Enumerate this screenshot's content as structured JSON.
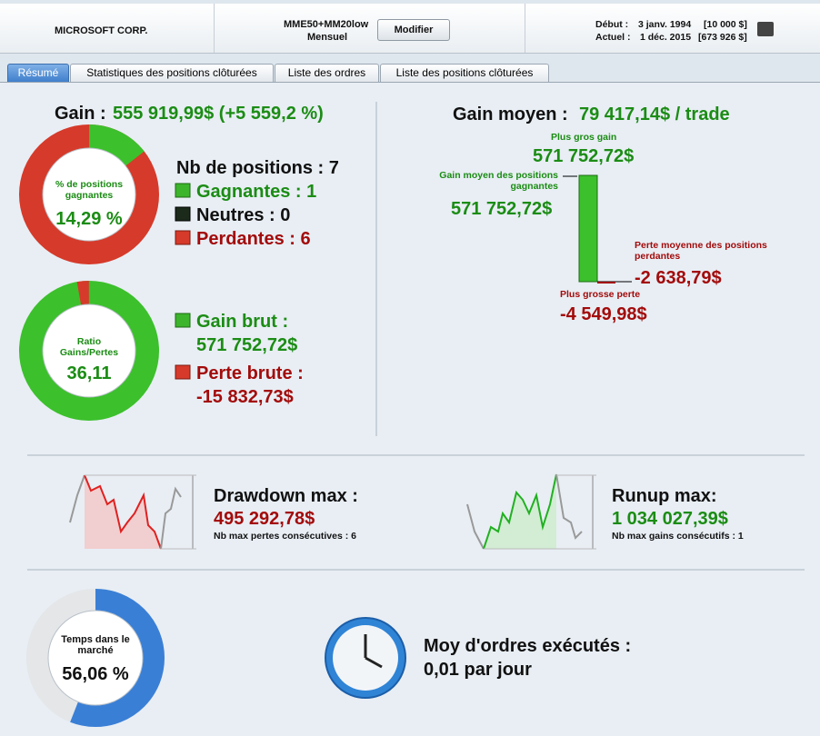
{
  "header": {
    "company": "MICROSOFT CORP.",
    "strategy": "MME50+MM20low",
    "period": "Mensuel",
    "button": "Modifier",
    "start_label": "Début :",
    "start_date": "3 janv. 1994",
    "start_capital": "[10 000 $]",
    "current_label": "Actuel :",
    "current_date": "1 déc. 2015",
    "current_capital": "[673 926 $]"
  },
  "tabs": [
    "Résumé",
    "Statistiques des positions clôturées",
    "Liste des ordres",
    "Liste des positions clôturées"
  ],
  "gain": {
    "label": "Gain :",
    "value": "555 919,99$ (+5 559,2 %)"
  },
  "win_rate": {
    "label": "% de positions gagnantes",
    "value": "14,29 %"
  },
  "positions": {
    "label": "Nb de positions : 7",
    "winning": "Gagnantes : 1",
    "neutral": "Neutres : 0",
    "losing": "Perdantes : 6"
  },
  "ratio": {
    "label": "Ratio Gains/Pertes",
    "value": "36,11"
  },
  "gross": {
    "gain_label": "Gain brut :",
    "gain_value": "571 752,72$",
    "loss_label": "Perte brute :",
    "loss_value": "-15 832,73$"
  },
  "average": {
    "label": "Gain moyen :",
    "value": "79 417,14$ / trade",
    "max_gain_label": "Plus gros gain",
    "max_gain": "571 752,72$",
    "avg_win_label": "Gain moyen des positions gagnantes",
    "avg_win": "571 752,72$",
    "avg_loss_label": "Perte moyenne des positions perdantes",
    "avg_loss": "-2 638,79$",
    "max_loss_label": "Plus grosse perte",
    "max_loss": "-4 549,98$"
  },
  "drawdown": {
    "label": "Drawdown max :",
    "value": "495 292,78$",
    "note": "Nb max pertes consécutives : 6"
  },
  "runup": {
    "label": "Runup max:",
    "value": "1 034 027,39$",
    "note": "Nb max gains consécutifs : 1"
  },
  "market_time": {
    "label": "Temps dans le marché",
    "value": "56,06 %"
  },
  "orders": {
    "label": "Moy d'ordres exécutés :",
    "value": "0,01 par jour"
  }
}
